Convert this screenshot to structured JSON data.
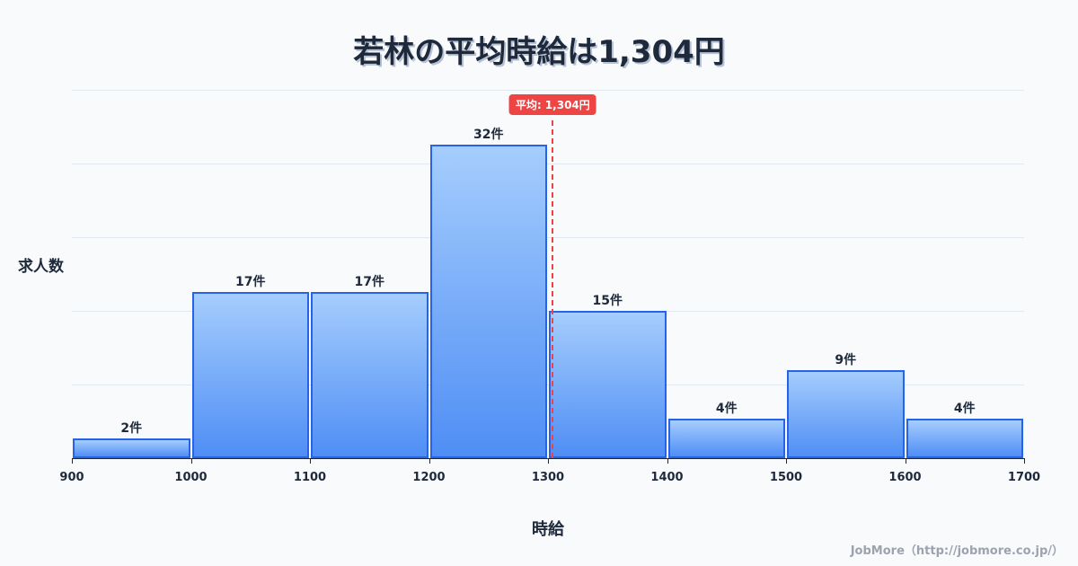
{
  "header": {
    "title": "若林の平均時給は1,304円"
  },
  "average": {
    "label": "平均: 1,304円",
    "value": 1304,
    "color": "#ef4444"
  },
  "axes": {
    "ylabel": "求人数",
    "xlabel": "時給"
  },
  "footer": {
    "credit": "JobMore（http://jobmore.co.jp/）"
  },
  "colors": {
    "bar_border": "#2563eb",
    "bar_top": "#a5cdfd",
    "bar_bottom": "#4f8ef5",
    "text": "#1e293b"
  },
  "chart_data": {
    "type": "bar",
    "title": "若林の平均時給は1,304円",
    "xlabel": "時給",
    "ylabel": "求人数",
    "categories": [
      "900-1000",
      "1000-1100",
      "1100-1200",
      "1200-1300",
      "1300-1400",
      "1400-1500",
      "1500-1600",
      "1600-1700"
    ],
    "bin_edges": [
      900,
      1000,
      1100,
      1200,
      1300,
      1400,
      1500,
      1600,
      1700
    ],
    "values": [
      2,
      17,
      17,
      32,
      15,
      4,
      9,
      4
    ],
    "value_labels": [
      "2件",
      "17件",
      "17件",
      "32件",
      "15件",
      "4件",
      "9件",
      "4件"
    ],
    "x_ticks": [
      "900",
      "1000",
      "1100",
      "1200",
      "1300",
      "1400",
      "1500",
      "1600",
      "1700"
    ],
    "xlim": [
      900,
      1700
    ],
    "ylim": [
      0,
      37.6
    ],
    "grid": true,
    "annotations": [
      {
        "type": "vline",
        "x": 1304,
        "label": "平均: 1,304円",
        "style": "dashed",
        "color": "#ef4444"
      }
    ]
  }
}
